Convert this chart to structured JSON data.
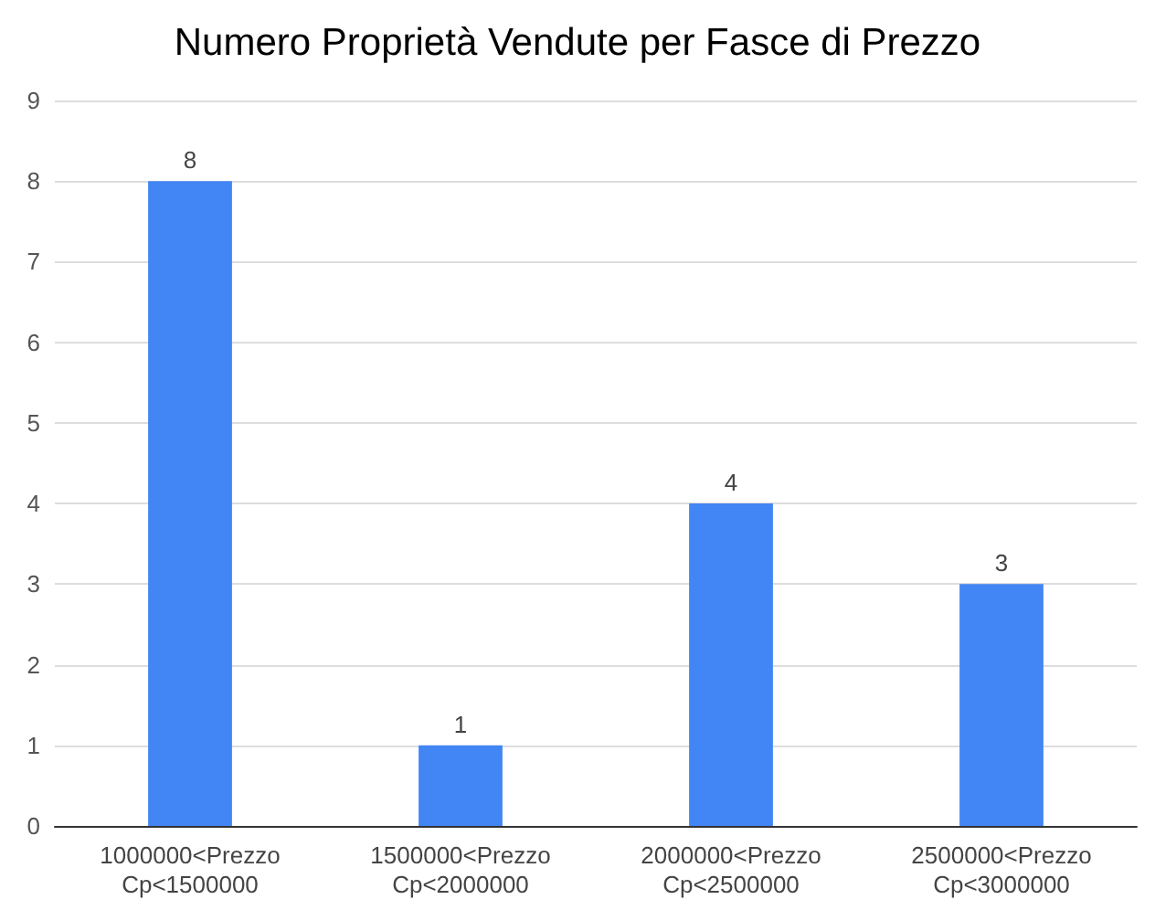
{
  "chart_data": {
    "type": "bar",
    "title": "Numero Proprietà Vendute per Fasce di Prezzo",
    "categories": [
      "1000000<Prezzo\nCp<1500000",
      "1500000<Prezzo\nCp<2000000",
      "2000000<Prezzo\nCp<2500000",
      "2500000<Prezzo\nCp<3000000"
    ],
    "values": [
      8,
      1,
      4,
      3
    ],
    "color": "#4285f4",
    "ylim": [
      0,
      9
    ],
    "yticks": [
      0,
      1,
      2,
      3,
      4,
      5,
      6,
      7,
      8,
      9
    ],
    "grid": true,
    "data_labels": true
  }
}
